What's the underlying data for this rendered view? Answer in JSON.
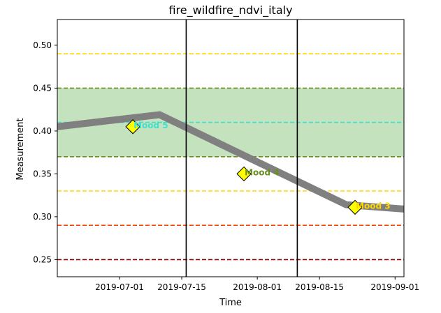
{
  "chart_data": {
    "type": "line",
    "title": "fire_wildfire_ndvi_italy",
    "xlabel": "Time",
    "ylabel": "Measurement",
    "xlim": [
      "2019-06-17",
      "2019-09-03"
    ],
    "ylim": [
      0.23,
      0.53
    ],
    "x_ticks": [
      "2019-07-01",
      "2019-07-15",
      "2019-08-01",
      "2019-08-15",
      "2019-09-01"
    ],
    "y_ticks": [
      "0.25",
      "0.30",
      "0.35",
      "0.40",
      "0.45",
      "0.50"
    ],
    "grid": false,
    "series": [
      {
        "color": "#808080",
        "x": [
          "2019-06-17",
          "2019-07-10",
          "2019-08-21",
          "2019-09-03"
        ],
        "values": [
          0.405,
          0.419,
          0.314,
          0.309
        ]
      }
    ],
    "band": {
      "y0": 0.37,
      "y1": 0.45,
      "color": "#a9d5a1"
    },
    "hlines": [
      {
        "y": 0.49,
        "color": "#ffd700",
        "style": "dashed"
      },
      {
        "y": 0.45,
        "color": "#6b8e23",
        "style": "dashed"
      },
      {
        "y": 0.41,
        "color": "#40e0d0",
        "style": "dashed"
      },
      {
        "y": 0.37,
        "color": "#6b8e23",
        "style": "dashed"
      },
      {
        "y": 0.33,
        "color": "#ffd700",
        "style": "dashed"
      },
      {
        "y": 0.29,
        "color": "#ff4500",
        "style": "dashed"
      },
      {
        "y": 0.25,
        "color": "#8b0000",
        "style": "dashed"
      }
    ],
    "vlines": [
      {
        "x": "2019-07-16",
        "color": "#000000"
      },
      {
        "x": "2019-08-10",
        "color": "#000000"
      }
    ],
    "annotations": [
      {
        "x": "2019-07-04",
        "y": 0.405,
        "label": "Mood 5",
        "color": "#40e0d0"
      },
      {
        "x": "2019-07-29",
        "y": 0.35,
        "label": "Mood 4",
        "color": "#6b8e23"
      },
      {
        "x": "2019-08-23",
        "y": 0.311,
        "label": "Mood 3",
        "color": "#ffd700"
      }
    ],
    "marker_color": "#ffff00"
  }
}
